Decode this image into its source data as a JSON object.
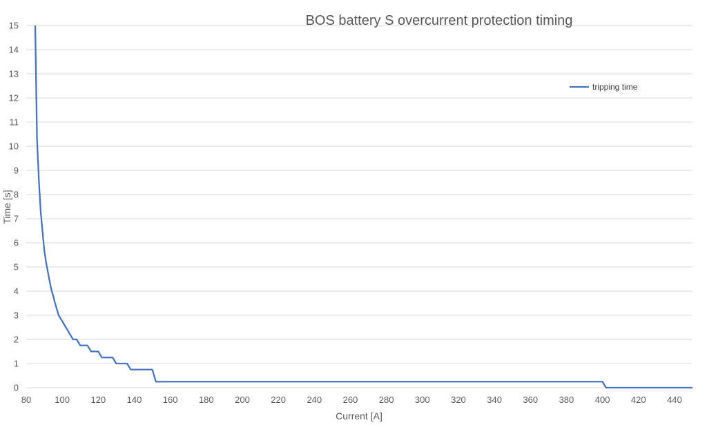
{
  "chart_data": {
    "type": "line",
    "title": "BOS battery S overcurrent protection timing",
    "xlabel": "Current [A]",
    "ylabel": "Time [s]",
    "xlim": [
      80,
      450
    ],
    "ylim": [
      0,
      15
    ],
    "x_ticks": [
      80,
      100,
      120,
      140,
      160,
      180,
      200,
      220,
      240,
      260,
      280,
      300,
      320,
      340,
      360,
      380,
      400,
      420,
      440
    ],
    "y_ticks": [
      0,
      1,
      2,
      3,
      4,
      5,
      6,
      7,
      8,
      9,
      10,
      11,
      12,
      13,
      14,
      15
    ],
    "grid": "horizontal",
    "legend_position": "top-right",
    "series": [
      {
        "name": "tripping time",
        "color": "#4472c4",
        "x": [
          85,
          86,
          87,
          88,
          89,
          90,
          91,
          92,
          93,
          94,
          95,
          96,
          97,
          98,
          100,
          102,
          104,
          106,
          108,
          110,
          112,
          114,
          116,
          118,
          120,
          122,
          124,
          126,
          128,
          130,
          132,
          134,
          136,
          138,
          140,
          142,
          144,
          146,
          148,
          150,
          152,
          154,
          160,
          180,
          200,
          250,
          300,
          350,
          400,
          402,
          420,
          440,
          450
        ],
        "y": [
          15,
          10.3,
          8.6,
          7.3,
          6.5,
          5.7,
          5.2,
          4.8,
          4.4,
          4.05,
          3.8,
          3.5,
          3.25,
          3.0,
          2.75,
          2.5,
          2.25,
          2.0,
          2.0,
          1.75,
          1.75,
          1.75,
          1.5,
          1.5,
          1.5,
          1.25,
          1.25,
          1.25,
          1.25,
          1.0,
          1.0,
          1.0,
          1.0,
          0.75,
          0.75,
          0.75,
          0.75,
          0.75,
          0.75,
          0.75,
          0.25,
          0.25,
          0.25,
          0.25,
          0.25,
          0.25,
          0.25,
          0.25,
          0.25,
          0.0,
          0.0,
          0.0,
          0.0
        ]
      }
    ]
  }
}
